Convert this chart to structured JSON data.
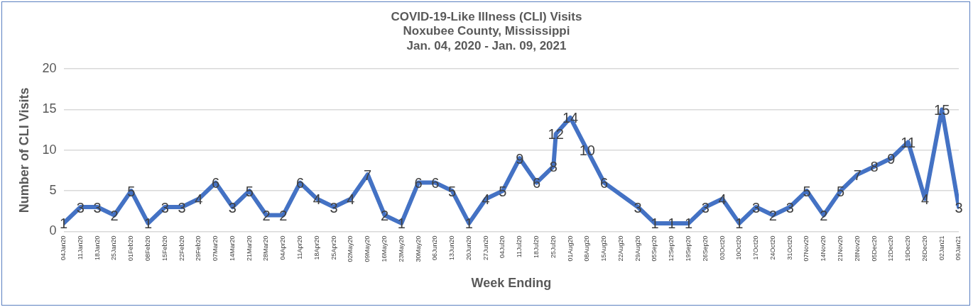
{
  "chart_data": {
    "type": "line",
    "title": "COVID-19-Like Illness (CLI) Visits\nNoxubee County, Mississippi\nJan. 04, 2020 - Jan. 09, 2021",
    "xlabel": "Week Ending",
    "ylabel": "Number of CLI Visits",
    "x": [
      "2020-01-04",
      "2020-01-11",
      "2020-01-18",
      "2020-01-25",
      "2020-02-01",
      "2020-02-08",
      "2020-02-15",
      "2020-02-22",
      "2020-02-29",
      "2020-03-07",
      "2020-03-14",
      "2020-03-21",
      "2020-03-28",
      "2020-04-04",
      "2020-04-11",
      "2020-04-18",
      "2020-04-25",
      "2020-05-02",
      "2020-05-09",
      "2020-05-16",
      "2020-05-23",
      "2020-05-30",
      "2020-06-06",
      "2020-06-13",
      "2020-06-20",
      "2020-06-27",
      "2020-07-04",
      "2020-07-11",
      "2020-07-18",
      "2020-07-25",
      "2020-07-26",
      "2020-08-01",
      "2020-08-08",
      "2020-08-15",
      "2020-08-29",
      "2020-09-05",
      "2020-09-12",
      "2020-09-19",
      "2020-09-26",
      "2020-10-03",
      "2020-10-10",
      "2020-10-17",
      "2020-10-24",
      "2020-10-31",
      "2020-11-07",
      "2020-11-14",
      "2020-11-21",
      "2020-11-28",
      "2020-12-05",
      "2020-12-12",
      "2020-12-19",
      "2020-12-26",
      "2021-01-02",
      "2021-01-09"
    ],
    "series": [
      {
        "color": "#4472c4",
        "values": [
          1,
          3,
          3,
          2,
          5,
          1,
          3,
          3,
          4,
          6,
          3,
          5,
          2,
          2,
          6,
          4,
          3,
          4,
          7,
          2,
          1,
          6,
          6,
          5,
          1,
          4,
          5,
          9,
          6,
          8,
          12,
          14,
          10,
          6,
          3,
          1,
          1,
          1,
          3,
          4,
          1,
          3,
          2,
          3,
          5,
          2,
          5,
          7,
          8,
          9,
          11,
          4,
          15,
          3
        ]
      }
    ],
    "xlim": [
      "2020-01-04",
      "2021-01-09"
    ],
    "xticks": [
      {
        "value": "2020-01-04",
        "label": "04Jan20"
      },
      {
        "value": "2020-01-11",
        "label": "11Jan20"
      },
      {
        "value": "2020-01-18",
        "label": "18Jan20"
      },
      {
        "value": "2020-01-25",
        "label": "25Jan20"
      },
      {
        "value": "2020-02-01",
        "label": "01Feb20"
      },
      {
        "value": "2020-02-08",
        "label": "08Feb20"
      },
      {
        "value": "2020-02-15",
        "label": "15Feb20"
      },
      {
        "value": "2020-02-22",
        "label": "22Feb20"
      },
      {
        "value": "2020-02-29",
        "label": "29Feb20"
      },
      {
        "value": "2020-03-07",
        "label": "07Mar20"
      },
      {
        "value": "2020-03-14",
        "label": "14Mar20"
      },
      {
        "value": "2020-03-21",
        "label": "21Mar20"
      },
      {
        "value": "2020-03-28",
        "label": "28Mar20"
      },
      {
        "value": "2020-04-04",
        "label": "04Apr20"
      },
      {
        "value": "2020-04-11",
        "label": "11Apr20"
      },
      {
        "value": "2020-04-18",
        "label": "18Apr20"
      },
      {
        "value": "2020-04-25",
        "label": "25Apr20"
      },
      {
        "value": "2020-05-02",
        "label": "02May20"
      },
      {
        "value": "2020-05-09",
        "label": "09May20"
      },
      {
        "value": "2020-05-16",
        "label": "16May20"
      },
      {
        "value": "2020-05-23",
        "label": "23May20"
      },
      {
        "value": "2020-05-30",
        "label": "30May20"
      },
      {
        "value": "2020-06-06",
        "label": "06Jun20"
      },
      {
        "value": "2020-06-13",
        "label": "13Jun20"
      },
      {
        "value": "2020-06-20",
        "label": "20Jun20"
      },
      {
        "value": "2020-06-27",
        "label": "27Jun20"
      },
      {
        "value": "2020-07-04",
        "label": "04Jul20"
      },
      {
        "value": "2020-07-11",
        "label": "11Jul20"
      },
      {
        "value": "2020-07-18",
        "label": "18Jul20"
      },
      {
        "value": "2020-07-25",
        "label": "25Jul20"
      },
      {
        "value": "2020-08-01",
        "label": "01Aug20"
      },
      {
        "value": "2020-08-08",
        "label": "08Aug20"
      },
      {
        "value": "2020-08-15",
        "label": "15Aug20"
      },
      {
        "value": "2020-08-22",
        "label": "22Aug20"
      },
      {
        "value": "2020-08-29",
        "label": "29Aug20"
      },
      {
        "value": "2020-09-05",
        "label": "05Sep20"
      },
      {
        "value": "2020-09-12",
        "label": "12Sep20"
      },
      {
        "value": "2020-09-19",
        "label": "19Sep20"
      },
      {
        "value": "2020-09-26",
        "label": "26Sep20"
      },
      {
        "value": "2020-10-03",
        "label": "03Oct20"
      },
      {
        "value": "2020-10-10",
        "label": "10Oct20"
      },
      {
        "value": "2020-10-17",
        "label": "17Oct20"
      },
      {
        "value": "2020-10-24",
        "label": "24Oct20"
      },
      {
        "value": "2020-10-31",
        "label": "31Oct20"
      },
      {
        "value": "2020-11-07",
        "label": "07Nov20"
      },
      {
        "value": "2020-11-14",
        "label": "14Nov20"
      },
      {
        "value": "2020-11-21",
        "label": "21Nov20"
      },
      {
        "value": "2020-11-28",
        "label": "28Nov20"
      },
      {
        "value": "2020-12-05",
        "label": "05Dec20"
      },
      {
        "value": "2020-12-12",
        "label": "12Dec20"
      },
      {
        "value": "2020-12-19",
        "label": "19Dec20"
      },
      {
        "value": "2020-12-26",
        "label": "26Dec20"
      },
      {
        "value": "2021-01-02",
        "label": "02Jan21"
      },
      {
        "value": "2021-01-09",
        "label": "09Jan21"
      }
    ],
    "ylim": [
      0,
      20
    ],
    "yticks": [
      0,
      5,
      10,
      15,
      20
    ],
    "grid": "y",
    "data_labels": true,
    "marker": "none",
    "line_style": "solid",
    "legend": false
  }
}
